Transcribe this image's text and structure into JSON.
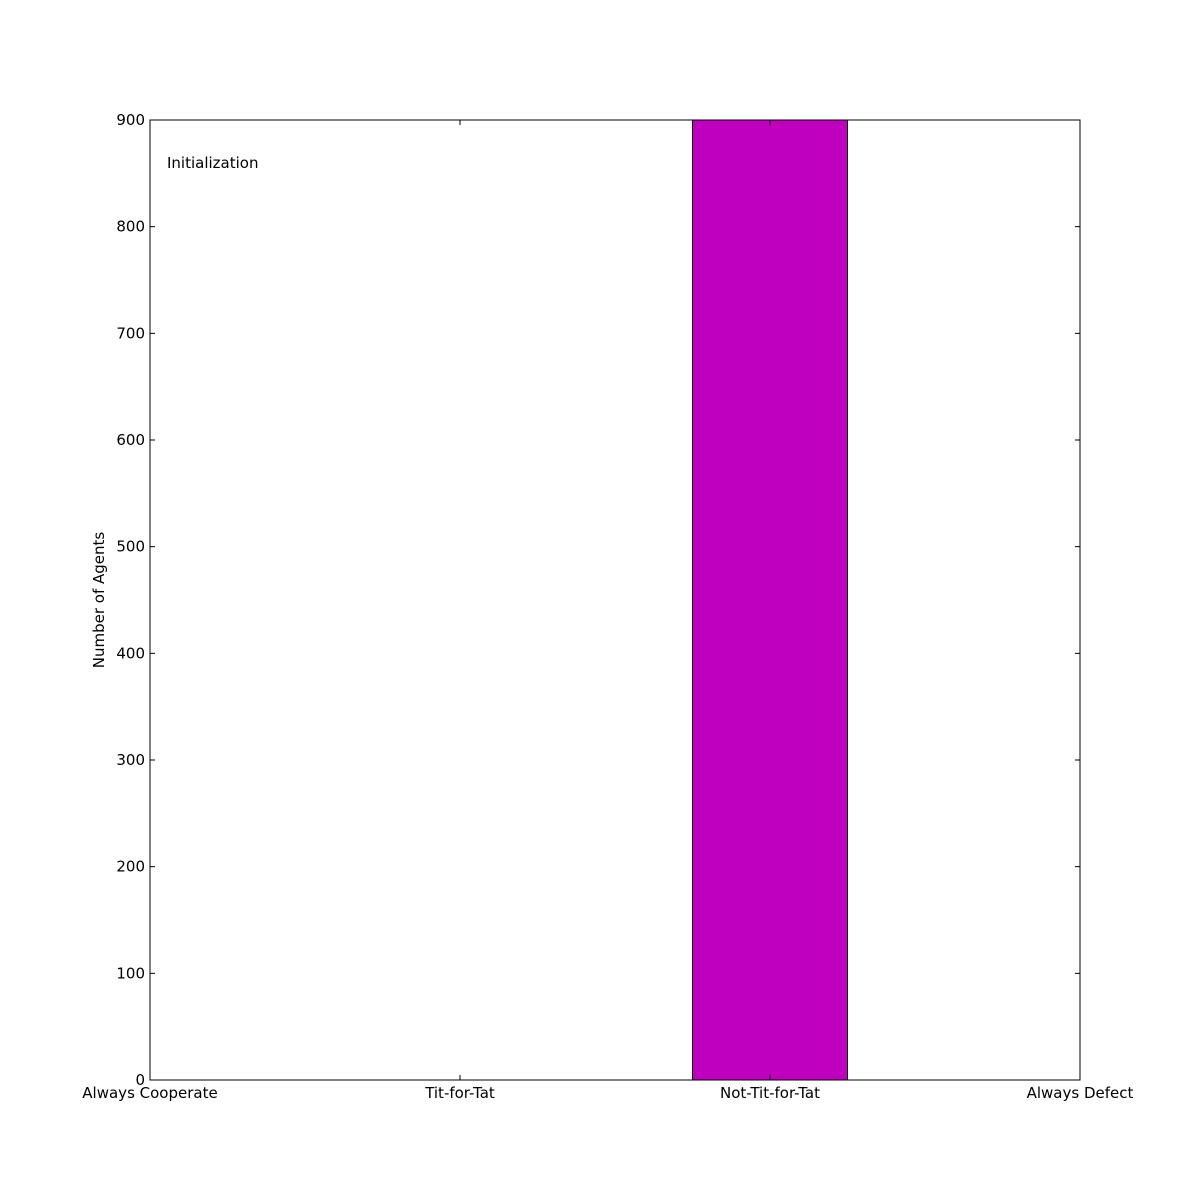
{
  "chart_data": {
    "type": "bar",
    "title": "",
    "xlabel": "",
    "ylabel": "Number of Agents",
    "annotation": "Initialization",
    "categories": [
      "Always Cooperate",
      "Tit-for-Tat",
      "Not-Tit-for-Tat",
      "Always Defect"
    ],
    "values": [
      0,
      0,
      900,
      0
    ],
    "ylim": [
      0,
      900
    ],
    "yticks": [
      0,
      100,
      200,
      300,
      400,
      500,
      600,
      700,
      800,
      900
    ],
    "bar_color": "#bf00bf",
    "edge_color": "#000000",
    "grid": false,
    "legend": false
  }
}
